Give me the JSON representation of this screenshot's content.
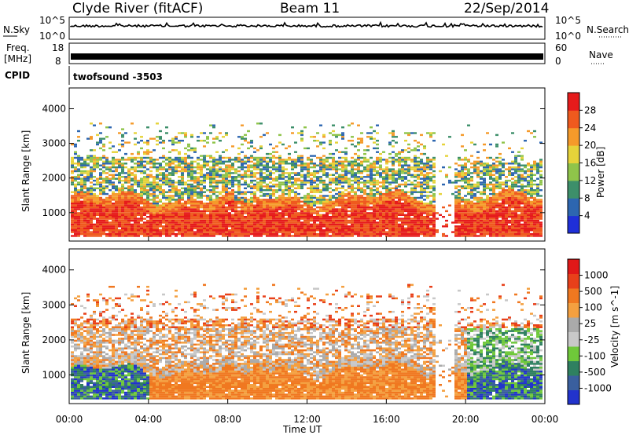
{
  "header": {
    "station": "Clyde River (fitACF)",
    "beam": "Beam 11",
    "date": "22/Sep/2014"
  },
  "noise_panel": {
    "left_label": "N.Sky",
    "right_label": "N.Search",
    "left_ticks": [
      "10^5",
      "10^0"
    ],
    "right_ticks": [
      "10^5",
      "10^0"
    ]
  },
  "freq_panel": {
    "left_label_line1": "Freq.",
    "left_label_line2": "[MHz]",
    "left_ticks": [
      "18",
      "8"
    ],
    "right_label": "Nave",
    "right_ticks": [
      "60",
      "0"
    ]
  },
  "cpid_panel": {
    "label": "CPID",
    "value": "twofsound  -3503"
  },
  "colors": {
    "frame": "#000000",
    "power_scale": [
      "#1f2fd8",
      "#2d66b0",
      "#3d8f6a",
      "#8fc44a",
      "#e6d33a",
      "#f59a2a",
      "#ef5a1e",
      "#e61b1b"
    ],
    "velocity_scale": [
      "#2233cc",
      "#3a5f9e",
      "#2f8060",
      "#6fc83a",
      "#c8c8c8",
      "#aaaaaa",
      "#f4a040",
      "#f07820",
      "#e8401a",
      "#e01818"
    ]
  },
  "chart_data": [
    {
      "type": "heatmap",
      "title": "Power",
      "ylabel": "Slant Range [km]",
      "xlabel": "Time UT",
      "ylim": [
        180,
        4600
      ],
      "yticks": [
        1000,
        2000,
        3000,
        4000
      ],
      "xticks": [
        "00:00",
        "04:00",
        "08:00",
        "12:00",
        "16:00",
        "20:00",
        "00:00"
      ],
      "colorbar_label": "Power [dB]",
      "colorbar_ticks": [
        "28",
        "24",
        "20",
        "16",
        "12",
        "8",
        "4"
      ],
      "colorbar_range": [
        0,
        30
      ]
    },
    {
      "type": "heatmap",
      "title": "Velocity",
      "ylabel": "Slant Range [km]",
      "xlabel": "Time UT",
      "ylim": [
        180,
        4600
      ],
      "yticks": [
        1000,
        2000,
        3000,
        4000
      ],
      "xticks": [
        "00:00",
        "04:00",
        "08:00",
        "12:00",
        "16:00",
        "20:00",
        "00:00"
      ],
      "colorbar_label": "Velocity [m s^-1]",
      "colorbar_ticks": [
        "1000",
        "500",
        "100",
        "25",
        "-25",
        "-100",
        "-500",
        "-1000"
      ]
    }
  ]
}
